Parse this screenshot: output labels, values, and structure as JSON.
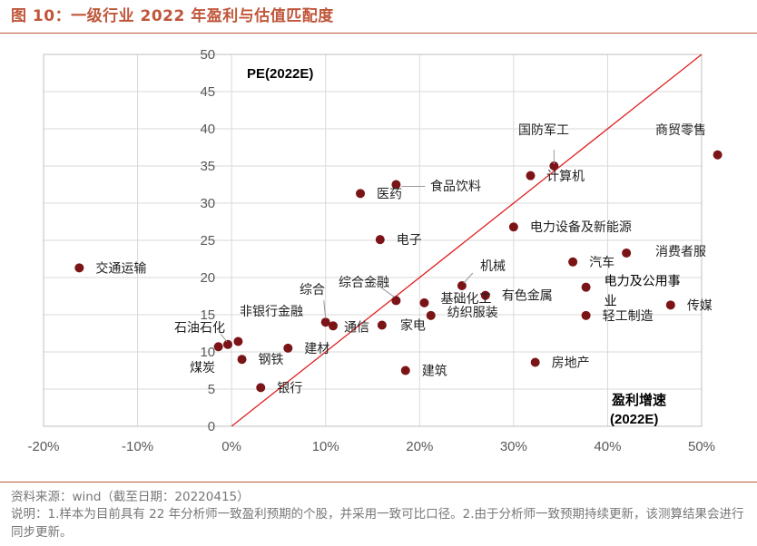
{
  "figure": {
    "title": "图 10：一级行业 2022 年盈利与估值匹配度",
    "source": "资料来源：wind（截至日期：20220415）",
    "note": "说明：1.样本为目前具有 22 年分析师一致盈利预期的个股，并采用一致可比口径。2.由于分析师一致预期持续更新，该测算结果会进行同步更新。"
  },
  "colors": {
    "accent": "#c0563a",
    "point": "#7b1416",
    "diagonal": "#e02020",
    "grid": "#d9d9d9"
  },
  "chart_data": {
    "type": "scatter",
    "title": "",
    "ylabel": "PE(2022E)",
    "xlabel_line1": "盈利增速",
    "xlabel_line2": "(2022E)",
    "xlim": [
      -0.2,
      0.5
    ],
    "ylim": [
      0,
      50
    ],
    "x_ticks": [
      -0.2,
      -0.1,
      0,
      0.1,
      0.2,
      0.3,
      0.4,
      0.5
    ],
    "x_tick_labels": [
      "-20%",
      "-10%",
      "0%",
      "10%",
      "20%",
      "30%",
      "40%",
      "50%"
    ],
    "y_ticks": [
      0,
      5,
      10,
      15,
      20,
      25,
      30,
      35,
      40,
      45,
      50
    ],
    "y_tick_labels": [
      "0",
      "5",
      "10",
      "15",
      "20",
      "25",
      "30",
      "35",
      "40",
      "45",
      "50"
    ],
    "diagonal": {
      "x0": 0,
      "y0": 0,
      "x1": 0.5,
      "y1": 50
    },
    "points": [
      {
        "name": "交通运输",
        "x": -0.162,
        "y": 21.3
      },
      {
        "name": "医药",
        "x": 0.137,
        "y": 31.3
      },
      {
        "name": "食品饮料",
        "x": 0.175,
        "y": 32.5
      },
      {
        "name": "国防军工",
        "x": 0.343,
        "y": 35.0
      },
      {
        "name": "计算机",
        "x": 0.318,
        "y": 33.7
      },
      {
        "name": "商贸零售",
        "x": 0.517,
        "y": 36.5
      },
      {
        "name": "电力设备及新能源",
        "x": 0.3,
        "y": 26.8
      },
      {
        "name": "电子",
        "x": 0.158,
        "y": 25.1
      },
      {
        "name": "消费者服",
        "x": 0.42,
        "y": 23.3
      },
      {
        "name": "汽车",
        "x": 0.363,
        "y": 22.1
      },
      {
        "name": "机械",
        "x": 0.245,
        "y": 18.9
      },
      {
        "name": "电力及公用事业",
        "x": 0.377,
        "y": 18.7
      },
      {
        "name": "综合金融",
        "x": 0.175,
        "y": 16.9
      },
      {
        "name": "综合",
        "x": 0.1,
        "y": 14.0
      },
      {
        "name": "有色金属",
        "x": 0.27,
        "y": 17.6
      },
      {
        "name": "基础化工",
        "x": 0.205,
        "y": 16.6
      },
      {
        "name": "传媒",
        "x": 0.467,
        "y": 16.3
      },
      {
        "name": "通信",
        "x": 0.108,
        "y": 13.5
      },
      {
        "name": "家电",
        "x": 0.16,
        "y": 13.6
      },
      {
        "name": "纺织服装",
        "x": 0.212,
        "y": 14.9
      },
      {
        "name": "轻工制造",
        "x": 0.377,
        "y": 14.9
      },
      {
        "name": "非银行金融",
        "x": 0.007,
        "y": 11.4
      },
      {
        "name": "石油石化",
        "x": -0.004,
        "y": 11.0
      },
      {
        "name": "煤炭",
        "x": -0.014,
        "y": 10.7
      },
      {
        "name": "建材",
        "x": 0.06,
        "y": 10.5
      },
      {
        "name": "钢铁",
        "x": 0.011,
        "y": 9.0
      },
      {
        "name": "房地产",
        "x": 0.323,
        "y": 8.6
      },
      {
        "name": "建筑",
        "x": 0.185,
        "y": 7.5
      },
      {
        "name": "银行",
        "x": 0.031,
        "y": 5.2
      }
    ]
  }
}
